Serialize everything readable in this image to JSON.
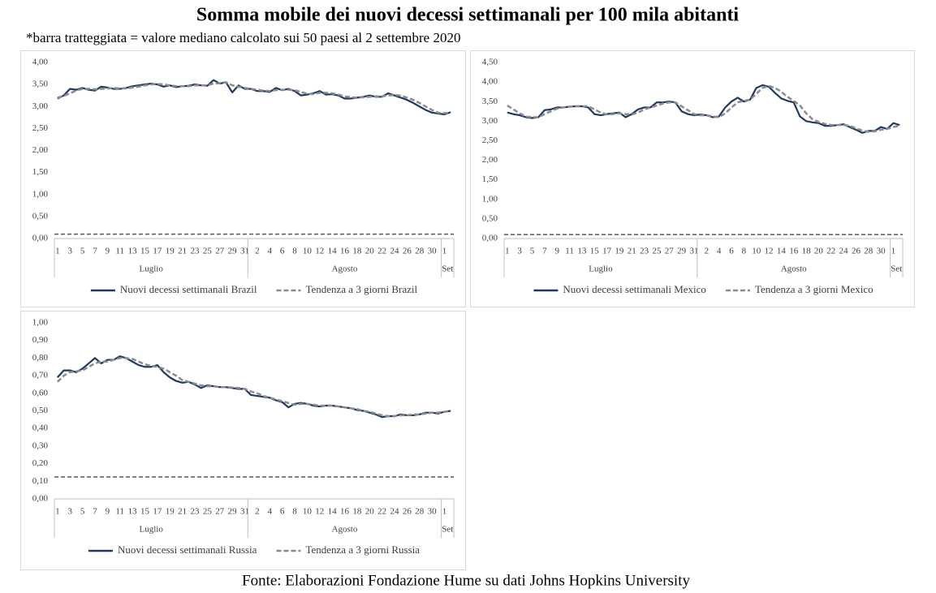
{
  "title": "Somma mobile dei nuovi decessi settimanali per 100 mila abitanti",
  "subtitle": "*barra tratteggiata = valore mediano calcolato sui 50 paesi al 2 settembre 2020",
  "source": "Fonte: Elaborazioni Fondazione Hume su dati Johns Hopkins University",
  "chart_data": [
    {
      "type": "line",
      "legend": "bottom",
      "categories": [
        "1",
        null,
        "3",
        null,
        "5",
        null,
        "7",
        null,
        "9",
        null,
        "11",
        null,
        "13",
        null,
        "15",
        null,
        "17",
        null,
        "19",
        null,
        "21",
        null,
        "23",
        null,
        "25",
        null,
        "27",
        null,
        "29",
        null,
        "31",
        null,
        "2",
        null,
        "4",
        null,
        "6",
        null,
        "8",
        null,
        "10",
        null,
        "12",
        null,
        "14",
        null,
        "16",
        null,
        "18",
        null,
        "20",
        null,
        "22",
        null,
        "24",
        null,
        "26",
        null,
        "28",
        null,
        "30",
        null,
        "1",
        null
      ],
      "groups": [
        {
          "label": "Luglio",
          "count": 31
        },
        {
          "label": "Agosto",
          "count": 31
        },
        {
          "label": "Set",
          "count": 2
        }
      ],
      "ylim": [
        0,
        4
      ],
      "yticks": [
        {
          "value": 0,
          "label": "0,00"
        },
        {
          "value": 0.5,
          "label": "0,50"
        },
        {
          "value": 1,
          "label": "1,00"
        },
        {
          "value": 1.5,
          "label": "1,50"
        },
        {
          "value": 2,
          "label": "2,00"
        },
        {
          "value": 2.5,
          "label": "2,50"
        },
        {
          "value": 3,
          "label": "3,00"
        },
        {
          "value": 3.5,
          "label": "3,50"
        },
        {
          "value": 4,
          "label": "4,00"
        }
      ],
      "reference_line": {
        "value": 0.1,
        "color": "#595959"
      },
      "series": [
        {
          "name": "Nuovi decessi settimanali Brazil",
          "color": "#1f3864",
          "dashed": false,
          "values": [
            3.18,
            3.25,
            3.4,
            3.38,
            3.42,
            3.38,
            3.36,
            3.45,
            3.43,
            3.4,
            3.4,
            3.42,
            3.46,
            3.48,
            3.5,
            3.52,
            3.5,
            3.45,
            3.48,
            3.44,
            3.46,
            3.47,
            3.5,
            3.48,
            3.47,
            3.6,
            3.52,
            3.55,
            3.32,
            3.48,
            3.4,
            3.4,
            3.35,
            3.35,
            3.33,
            3.42,
            3.37,
            3.4,
            3.35,
            3.25,
            3.27,
            3.3,
            3.35,
            3.27,
            3.28,
            3.25,
            3.18,
            3.18,
            3.2,
            3.22,
            3.25,
            3.22,
            3.22,
            3.3,
            3.25,
            3.2,
            3.15,
            3.08,
            3.0,
            2.92,
            2.86,
            2.84,
            2.82,
            2.87
          ]
        },
        {
          "name": "Tendenza a 3 giorni Brazil",
          "color": "#8c8c8c",
          "dashed": true,
          "values": [
            3.2,
            3.24,
            3.3,
            3.36,
            3.4,
            3.4,
            3.39,
            3.4,
            3.41,
            3.42,
            3.41,
            3.41,
            3.43,
            3.45,
            3.48,
            3.5,
            3.51,
            3.5,
            3.48,
            3.46,
            3.46,
            3.46,
            3.48,
            3.48,
            3.48,
            3.52,
            3.53,
            3.55,
            3.48,
            3.45,
            3.42,
            3.4,
            3.38,
            3.36,
            3.35,
            3.37,
            3.38,
            3.38,
            3.37,
            3.33,
            3.29,
            3.28,
            3.31,
            3.31,
            3.3,
            3.27,
            3.23,
            3.21,
            3.2,
            3.21,
            3.22,
            3.23,
            3.23,
            3.25,
            3.26,
            3.25,
            3.2,
            3.15,
            3.08,
            3.0,
            2.92,
            2.86,
            2.85,
            2.85
          ]
        }
      ]
    },
    {
      "type": "line",
      "legend": "bottom",
      "categories": [
        "1",
        null,
        "3",
        null,
        "5",
        null,
        "7",
        null,
        "9",
        null,
        "11",
        null,
        "13",
        null,
        "15",
        null,
        "17",
        null,
        "19",
        null,
        "21",
        null,
        "23",
        null,
        "25",
        null,
        "27",
        null,
        "29",
        null,
        "31",
        null,
        "2",
        null,
        "4",
        null,
        "6",
        null,
        "8",
        null,
        "10",
        null,
        "12",
        null,
        "14",
        null,
        "16",
        null,
        "18",
        null,
        "20",
        null,
        "22",
        null,
        "24",
        null,
        "26",
        null,
        "28",
        null,
        "30",
        null,
        "1",
        null
      ],
      "groups": [
        {
          "label": "Luglio",
          "count": 31
        },
        {
          "label": "Agosto",
          "count": 31
        },
        {
          "label": "Set",
          "count": 2
        }
      ],
      "ylim": [
        0,
        4.5
      ],
      "yticks": [
        {
          "value": 0,
          "label": "0,00"
        },
        {
          "value": 0.5,
          "label": "0,50"
        },
        {
          "value": 1,
          "label": "1,00"
        },
        {
          "value": 1.5,
          "label": "1,50"
        },
        {
          "value": 2,
          "label": "2,00"
        },
        {
          "value": 2.5,
          "label": "2,50"
        },
        {
          "value": 3,
          "label": "3,00"
        },
        {
          "value": 3.5,
          "label": "3,50"
        },
        {
          "value": 4,
          "label": "4,00"
        },
        {
          "value": 4.5,
          "label": "4,50"
        }
      ],
      "reference_line": {
        "value": 0.1,
        "color": "#595959"
      },
      "series": [
        {
          "name": "Nuovi decessi settimanali Mexico",
          "color": "#1f3864",
          "dashed": false,
          "values": [
            3.22,
            3.18,
            3.15,
            3.1,
            3.08,
            3.1,
            3.28,
            3.3,
            3.35,
            3.35,
            3.37,
            3.38,
            3.38,
            3.35,
            3.18,
            3.15,
            3.18,
            3.2,
            3.22,
            3.1,
            3.18,
            3.3,
            3.35,
            3.35,
            3.48,
            3.48,
            3.5,
            3.48,
            3.25,
            3.18,
            3.15,
            3.17,
            3.15,
            3.1,
            3.12,
            3.35,
            3.5,
            3.6,
            3.5,
            3.55,
            3.85,
            3.92,
            3.88,
            3.72,
            3.58,
            3.52,
            3.48,
            3.12,
            3.0,
            2.97,
            2.95,
            2.88,
            2.88,
            2.9,
            2.92,
            2.85,
            2.78,
            2.7,
            2.75,
            2.75,
            2.85,
            2.8,
            2.95,
            2.9
          ]
        },
        {
          "name": "Tendenza a 3 giorni Mexico",
          "color": "#8c8c8c",
          "dashed": true,
          "values": [
            3.4,
            3.3,
            3.2,
            3.12,
            3.1,
            3.1,
            3.18,
            3.25,
            3.32,
            3.35,
            3.37,
            3.38,
            3.38,
            3.38,
            3.3,
            3.22,
            3.17,
            3.18,
            3.2,
            3.18,
            3.17,
            3.22,
            3.3,
            3.35,
            3.4,
            3.45,
            3.48,
            3.48,
            3.38,
            3.28,
            3.18,
            3.15,
            3.15,
            3.12,
            3.1,
            3.2,
            3.35,
            3.48,
            3.52,
            3.55,
            3.7,
            3.85,
            3.9,
            3.85,
            3.75,
            3.62,
            3.52,
            3.4,
            3.2,
            3.05,
            2.98,
            2.93,
            2.9,
            2.9,
            2.9,
            2.88,
            2.82,
            2.76,
            2.73,
            2.74,
            2.78,
            2.8,
            2.85,
            2.88
          ]
        }
      ]
    },
    {
      "type": "line",
      "legend": "bottom",
      "categories": [
        "1",
        null,
        "3",
        null,
        "5",
        null,
        "7",
        null,
        "9",
        null,
        "11",
        null,
        "13",
        null,
        "15",
        null,
        "17",
        null,
        "19",
        null,
        "21",
        null,
        "23",
        null,
        "25",
        null,
        "27",
        null,
        "29",
        null,
        "31",
        null,
        "2",
        null,
        "4",
        null,
        "6",
        null,
        "8",
        null,
        "10",
        null,
        "12",
        null,
        "14",
        null,
        "16",
        null,
        "18",
        null,
        "20",
        null,
        "22",
        null,
        "24",
        null,
        "26",
        null,
        "28",
        null,
        "30",
        null,
        "1",
        null
      ],
      "groups": [
        {
          "label": "Luglio",
          "count": 31
        },
        {
          "label": "Agosto",
          "count": 31
        },
        {
          "label": "Set",
          "count": 2
        }
      ],
      "ylim": [
        0,
        1
      ],
      "yticks": [
        {
          "value": 0,
          "label": "0,00"
        },
        {
          "value": 0.1,
          "label": "0,10"
        },
        {
          "value": 0.2,
          "label": "0,20"
        },
        {
          "value": 0.3,
          "label": "0,30"
        },
        {
          "value": 0.4,
          "label": "0,40"
        },
        {
          "value": 0.5,
          "label": "0,50"
        },
        {
          "value": 0.6,
          "label": "0,60"
        },
        {
          "value": 0.7,
          "label": "0,70"
        },
        {
          "value": 0.8,
          "label": "0,80"
        },
        {
          "value": 0.9,
          "label": "0,90"
        },
        {
          "value": 1,
          "label": "1,00"
        }
      ],
      "reference_line": {
        "value": 0.125,
        "color": "#595959"
      },
      "series": [
        {
          "name": "Nuovi decessi settimanali Russia",
          "color": "#1f3864",
          "dashed": false,
          "values": [
            0.69,
            0.73,
            0.73,
            0.72,
            0.74,
            0.77,
            0.8,
            0.77,
            0.79,
            0.79,
            0.81,
            0.8,
            0.78,
            0.76,
            0.75,
            0.75,
            0.76,
            0.72,
            0.69,
            0.67,
            0.66,
            0.665,
            0.65,
            0.63,
            0.645,
            0.64,
            0.635,
            0.635,
            0.63,
            0.625,
            0.625,
            0.59,
            0.585,
            0.58,
            0.575,
            0.56,
            0.55,
            0.52,
            0.54,
            0.545,
            0.54,
            0.53,
            0.525,
            0.53,
            0.53,
            0.525,
            0.52,
            0.515,
            0.505,
            0.5,
            0.49,
            0.48,
            0.465,
            0.47,
            0.47,
            0.48,
            0.475,
            0.475,
            0.48,
            0.49,
            0.49,
            0.485,
            0.495,
            0.5
          ]
        },
        {
          "name": "Tendenza a 3 giorni Russia",
          "color": "#8c8c8c",
          "dashed": true,
          "values": [
            0.665,
            0.7,
            0.72,
            0.725,
            0.73,
            0.75,
            0.77,
            0.78,
            0.78,
            0.79,
            0.8,
            0.8,
            0.795,
            0.78,
            0.765,
            0.755,
            0.75,
            0.74,
            0.72,
            0.7,
            0.675,
            0.665,
            0.655,
            0.645,
            0.64,
            0.64,
            0.635,
            0.635,
            0.633,
            0.63,
            0.625,
            0.61,
            0.6,
            0.585,
            0.575,
            0.565,
            0.555,
            0.545,
            0.535,
            0.54,
            0.54,
            0.535,
            0.53,
            0.53,
            0.53,
            0.525,
            0.52,
            0.515,
            0.51,
            0.5,
            0.495,
            0.485,
            0.475,
            0.47,
            0.47,
            0.475,
            0.475,
            0.48,
            0.48,
            0.485,
            0.49,
            0.49,
            0.495,
            0.5
          ]
        }
      ]
    }
  ]
}
